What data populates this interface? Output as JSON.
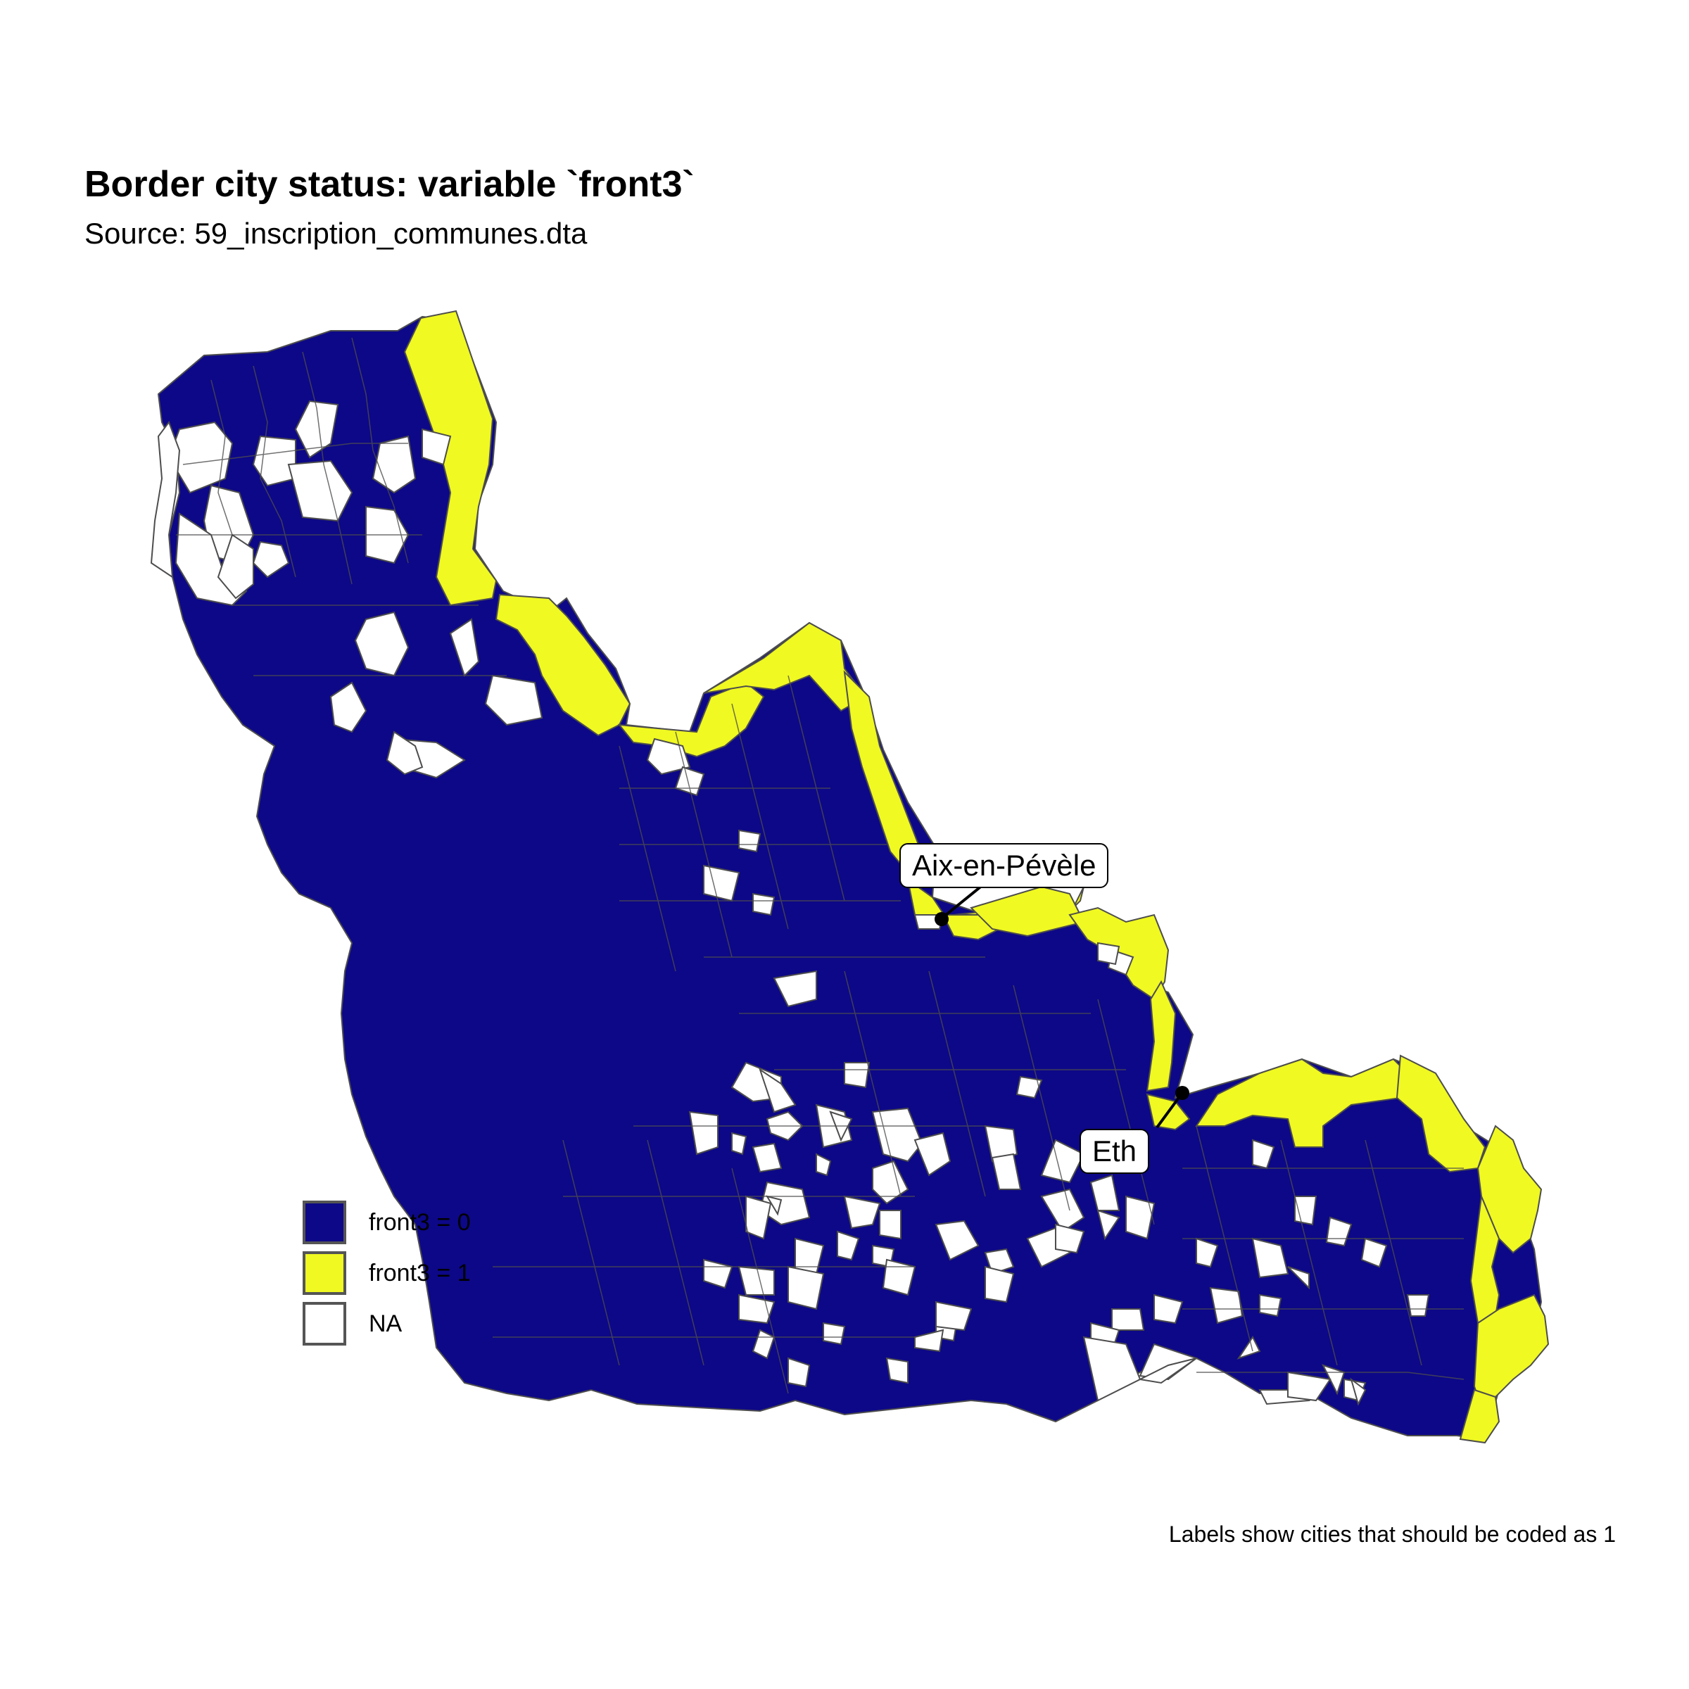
{
  "title": "Border city status: variable `front3`",
  "subtitle": "Source: 59_inscription_communes.dta",
  "caption": "Labels show cities that should be coded as 1",
  "colors": {
    "front3_0": "#0d0887",
    "front3_1": "#f0f921",
    "na": "#ffffff",
    "border": "#4d4d4d"
  },
  "legend": {
    "items": [
      {
        "label": "front3 = 0",
        "color": "#0d0887"
      },
      {
        "label": "front3 = 1",
        "color": "#f0f921"
      },
      {
        "label": "NA",
        "color": "#ffffff"
      }
    ]
  },
  "annotations": [
    {
      "label": "Aix-en-Pévèle"
    },
    {
      "label": "Eth"
    }
  ]
}
